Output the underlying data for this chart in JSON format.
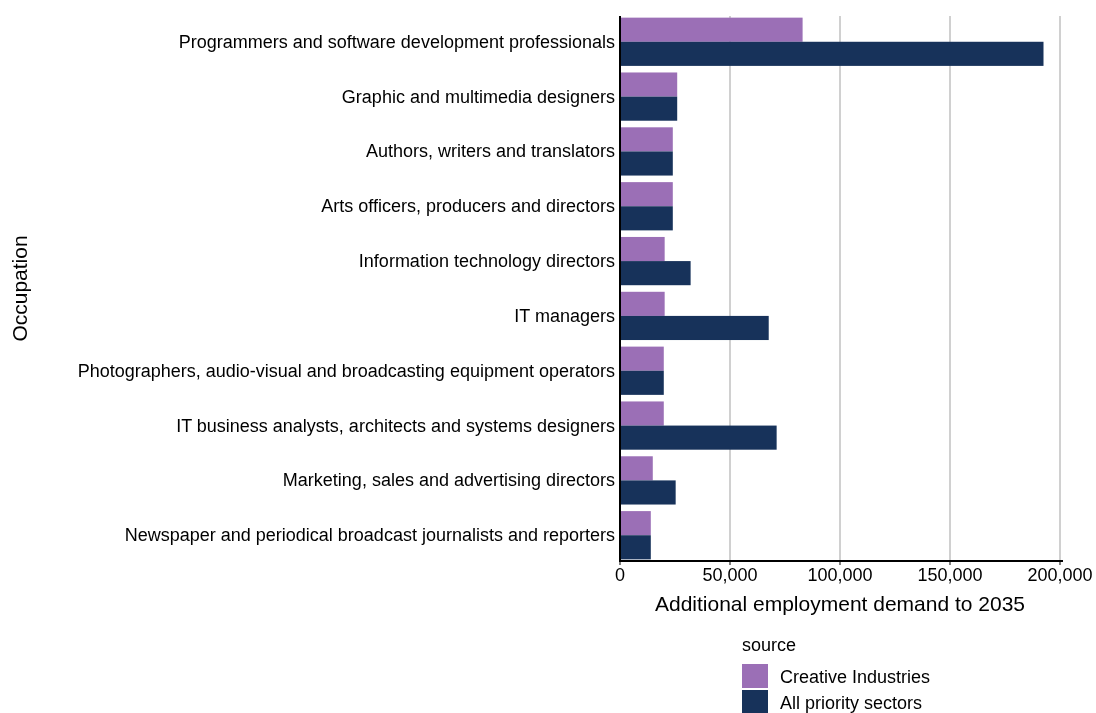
{
  "chart_data": {
    "type": "bar",
    "orientation": "horizontal",
    "xlabel": "Additional employment demand to 2035",
    "ylabel": "Occupation",
    "legend_title": "source",
    "legend": "bottom",
    "grid": "x",
    "categories": [
      "Programmers and software development professionals",
      "Graphic and multimedia designers",
      "Authors, writers and translators",
      "Arts officers, producers and directors",
      "Information technology directors",
      "IT managers",
      "Photographers, audio-visual and broadcasting equipment operators",
      "IT business analysts, architects and systems designers",
      "Marketing, sales and advertising directors",
      "Newspaper and periodical broadcast journalists and reporters"
    ],
    "series": [
      {
        "name": "Creative Industries",
        "color": "#9b6fb6",
        "values": [
          83000,
          26000,
          24000,
          24000,
          20300,
          20300,
          19900,
          19900,
          14900,
          14000
        ]
      },
      {
        "name": "All priority sectors",
        "color": "#17325a",
        "values": [
          192500,
          26000,
          24000,
          24000,
          32100,
          67600,
          19900,
          71200,
          25300,
          14000
        ]
      }
    ],
    "xlim": [
      0,
      200000
    ],
    "xticks": [
      {
        "value": 0,
        "label": "0"
      },
      {
        "value": 50000,
        "label": "50,000"
      },
      {
        "value": 100000,
        "label": "100,000"
      },
      {
        "value": 150000,
        "label": "150,000"
      },
      {
        "value": 200000,
        "label": "200,000"
      }
    ]
  }
}
